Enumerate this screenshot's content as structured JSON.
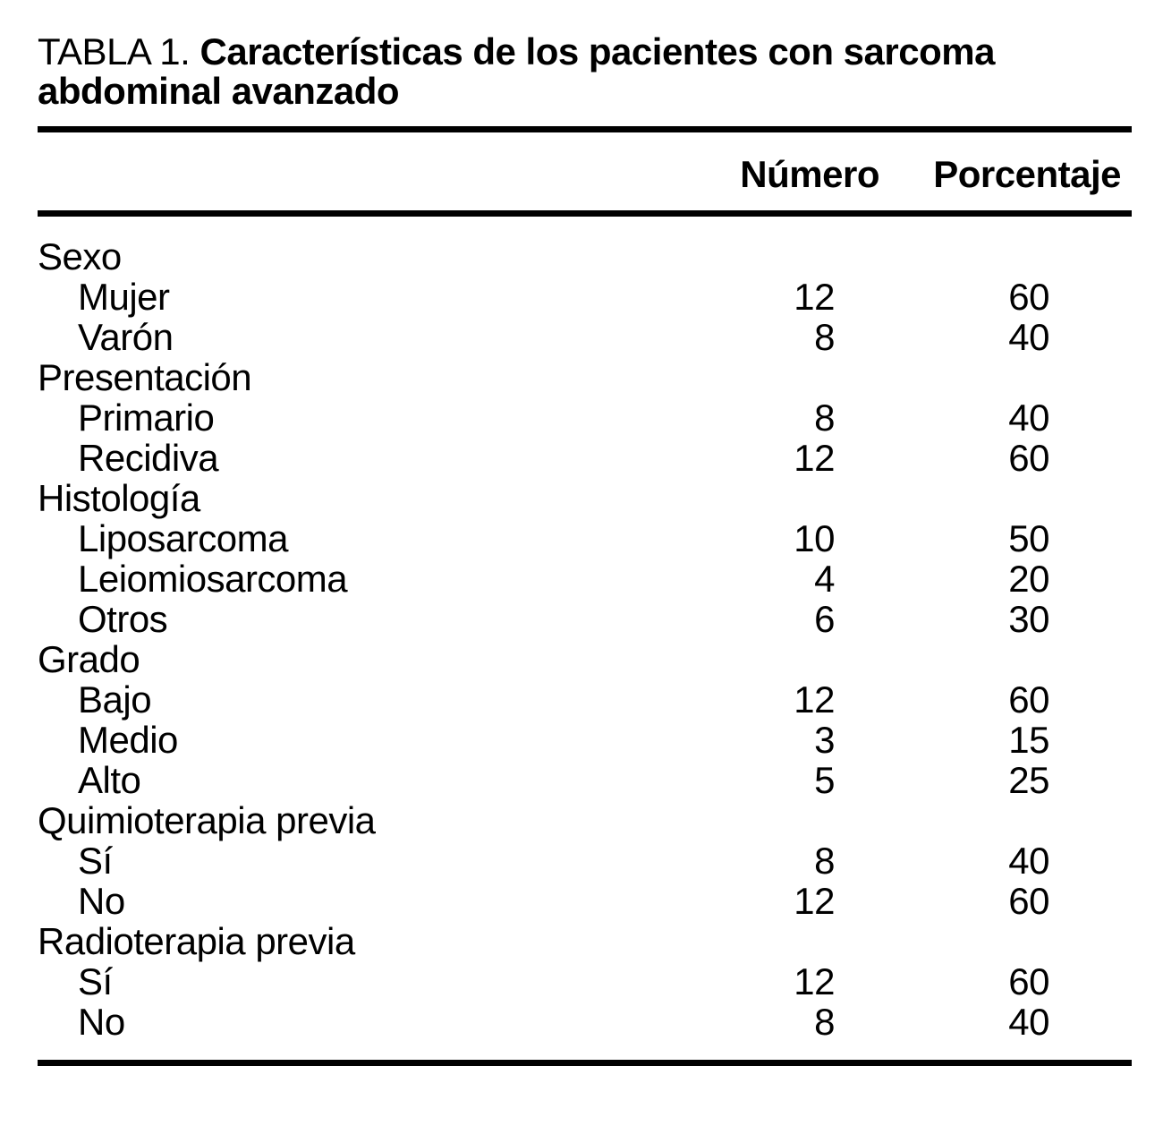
{
  "title": {
    "prefix": "TABLA 1.",
    "main_line1": "Características de los pacientes con sarcoma",
    "main_line2": "abdominal avanzado"
  },
  "table": {
    "columns": {
      "label": "",
      "numero": "Número",
      "porcentaje": "Porcentaje"
    },
    "rows": [
      {
        "label": "Sexo",
        "numero": "",
        "porcentaje": "",
        "indent": false
      },
      {
        "label": "Mujer",
        "numero": "12",
        "porcentaje": "60",
        "indent": true
      },
      {
        "label": "Varón",
        "numero": "8",
        "porcentaje": "40",
        "indent": true
      },
      {
        "label": "Presentación",
        "numero": "",
        "porcentaje": "",
        "indent": false
      },
      {
        "label": "Primario",
        "numero": "8",
        "porcentaje": "40",
        "indent": true
      },
      {
        "label": "Recidiva",
        "numero": "12",
        "porcentaje": "60",
        "indent": true
      },
      {
        "label": "Histología",
        "numero": "",
        "porcentaje": "",
        "indent": false
      },
      {
        "label": "Liposarcoma",
        "numero": "10",
        "porcentaje": "50",
        "indent": true
      },
      {
        "label": "Leiomiosarcoma",
        "numero": "4",
        "porcentaje": "20",
        "indent": true
      },
      {
        "label": "Otros",
        "numero": "6",
        "porcentaje": "30",
        "indent": true
      },
      {
        "label": "Grado",
        "numero": "",
        "porcentaje": "",
        "indent": false
      },
      {
        "label": "Bajo",
        "numero": "12",
        "porcentaje": "60",
        "indent": true
      },
      {
        "label": "Medio",
        "numero": "3",
        "porcentaje": "15",
        "indent": true
      },
      {
        "label": "Alto",
        "numero": "5",
        "porcentaje": "25",
        "indent": true
      },
      {
        "label": "Quimioterapia previa",
        "numero": "",
        "porcentaje": "",
        "indent": false
      },
      {
        "label": "Sí",
        "numero": "8",
        "porcentaje": "40",
        "indent": true
      },
      {
        "label": "No",
        "numero": "12",
        "porcentaje": "60",
        "indent": true
      },
      {
        "label": "Radioterapia previa",
        "numero": "",
        "porcentaje": "",
        "indent": false
      },
      {
        "label": "Sí",
        "numero": "12",
        "porcentaje": "60",
        "indent": true
      },
      {
        "label": "No",
        "numero": "8",
        "porcentaje": "40",
        "indent": true
      }
    ]
  },
  "colors": {
    "text": "#000000",
    "background": "#ffffff",
    "rule": "#000000"
  }
}
